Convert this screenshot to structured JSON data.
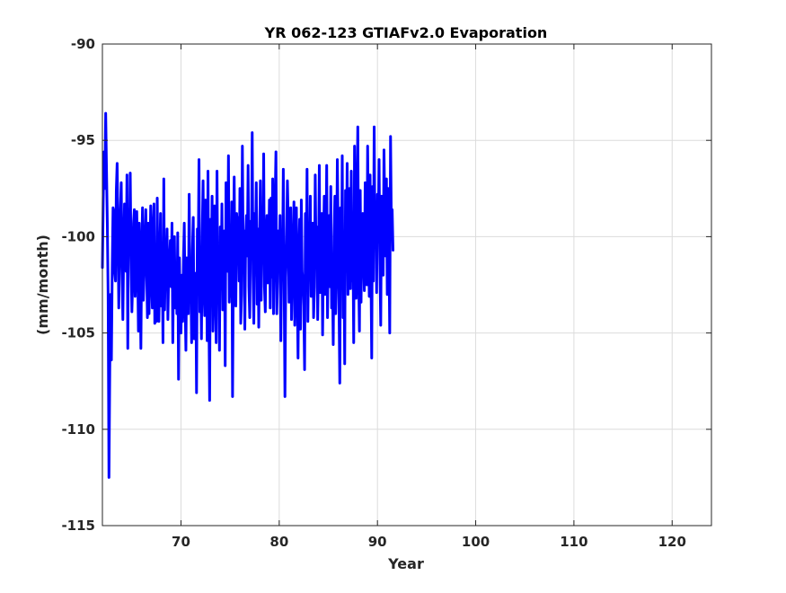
{
  "chart_data": {
    "type": "line",
    "title": "YR 062-123 GTIAFv2.0 Evaporation",
    "xlabel": "Year",
    "ylabel": "(mm/month)",
    "xlim": [
      62,
      124
    ],
    "ylim": [
      -115,
      -90
    ],
    "xticks": [
      70,
      80,
      90,
      100,
      110,
      120
    ],
    "xtick_labels": [
      "70",
      "80",
      "90",
      "100",
      "110",
      "120"
    ],
    "yticks": [
      -115,
      -110,
      -105,
      -100,
      -95,
      -90
    ],
    "ytick_labels": [
      "-115",
      "-110",
      "-105",
      "-100",
      "-95",
      "-90"
    ],
    "grid": true,
    "legend": "none",
    "series": [
      {
        "color": "#0000ff",
        "sampling": "monthly",
        "x_start": 62.0,
        "x_step": 0.08333,
        "values": [
          -101.6,
          -98.1,
          -95.6,
          -97.5,
          -93.6,
          -96.5,
          -99.3,
          -103.0,
          -112.5,
          -106.9,
          -103.0,
          -106.4,
          -101.6,
          -98.5,
          -98.7,
          -101.8,
          -102.3,
          -97.6,
          -96.2,
          -99.5,
          -103.7,
          -100.5,
          -98.6,
          -97.2,
          -101.7,
          -104.3,
          -100.7,
          -98.3,
          -101.5,
          -101.8,
          -96.8,
          -105.8,
          -98.6,
          -100.5,
          -96.7,
          -101.1,
          -103.9,
          -102.3,
          -99.3,
          -98.6,
          -103.1,
          -101.3,
          -98.7,
          -101.3,
          -104.9,
          -99.3,
          -101.8,
          -105.8,
          -100.8,
          -98.5,
          -103.3,
          -101.9,
          -100.2,
          -98.6,
          -101.5,
          -104.2,
          -99.3,
          -104.0,
          -101.1,
          -98.4,
          -102.2,
          -103.7,
          -99.6,
          -98.3,
          -104.5,
          -100.9,
          -104.4,
          -98.0,
          -103.5,
          -104.4,
          -101.4,
          -98.8,
          -103.6,
          -100.5,
          -105.5,
          -97.0,
          -103.8,
          -101.1,
          -101.5,
          -99.6,
          -104.3,
          -102.0,
          -101.2,
          -100.2,
          -102.6,
          -99.3,
          -105.5,
          -101.4,
          -100.0,
          -103.7,
          -101.4,
          -104.0,
          -99.8,
          -107.4,
          -101.1,
          -103.9,
          -105.0,
          -102.0,
          -104.4,
          -101.3,
          -99.3,
          -103.3,
          -105.9,
          -101.1,
          -102.0,
          -104.0,
          -97.8,
          -103.0,
          -102.2,
          -105.5,
          -100.7,
          -99.0,
          -105.3,
          -103.7,
          -101.9,
          -108.1,
          -99.6,
          -101.3,
          -96.0,
          -103.9,
          -101.2,
          -105.3,
          -99.8,
          -97.1,
          -102.6,
          -104.1,
          -98.1,
          -100.1,
          -105.4,
          -96.6,
          -103.6,
          -108.5,
          -99.1,
          -102.6,
          -97.9,
          -104.9,
          -101.6,
          -98.4,
          -102.5,
          -105.5,
          -96.6,
          -103.2,
          -100.9,
          -105.9,
          -99.5,
          -102.7,
          -98.3,
          -103.8,
          -100.5,
          -99.7,
          -106.7,
          -97.2,
          -101.2,
          -101.8,
          -95.8,
          -103.4,
          -101.1,
          -103.1,
          -98.2,
          -108.3,
          -101.4,
          -96.9,
          -102.1,
          -103.6,
          -98.8,
          -100.5,
          -99.0,
          -102.3,
          -97.5,
          -104.5,
          -103.0,
          -95.3,
          -101.0,
          -99.7,
          -104.8,
          -100.1,
          -98.9,
          -101.0,
          -96.3,
          -102.6,
          -104.2,
          -99.2,
          -100.9,
          -94.6,
          -101.9,
          -104.5,
          -98.8,
          -100.4,
          -97.2,
          -103.5,
          -99.6,
          -104.7,
          -100.1,
          -97.1,
          -103.3,
          -99.8,
          -101.3,
          -95.7,
          -102.6,
          -103.9,
          -100.0,
          -98.9,
          -102.4,
          -101.4,
          -98.1,
          -103.7,
          -98.0,
          -102.1,
          -97.0,
          -104.0,
          -100.7,
          -98.2,
          -95.6,
          -104.0,
          -102.3,
          -99.7,
          -101.6,
          -98.9,
          -105.4,
          -100.9,
          -101.7,
          -96.5,
          -102.4,
          -108.3,
          -102.1,
          -100.4,
          -97.1,
          -99.1,
          -103.4,
          -103.0,
          -98.5,
          -104.3,
          -101.9,
          -100.3,
          -98.2,
          -104.6,
          -100.8,
          -98.5,
          -102.7,
          -106.3,
          -101.2,
          -99.1,
          -104.8,
          -98.1,
          -101.8,
          -102.4,
          -103.6,
          -106.9,
          -98.8,
          -102.1,
          -96.5,
          -104.4,
          -100.5,
          -101.7,
          -97.9,
          -103.1,
          -101.4,
          -99.3,
          -104.2,
          -102.6,
          -96.8,
          -101.1,
          -99.5,
          -104.3,
          -101.5,
          -96.3,
          -102.9,
          -101.9,
          -98.8,
          -105.1,
          -100.5,
          -97.9,
          -103.0,
          -101.6,
          -96.3,
          -104.2,
          -100.2,
          -98.9,
          -102.6,
          -97.4,
          -103.7,
          -102.1,
          -105.6,
          -100.0,
          -97.9,
          -104.0,
          -101.5,
          -96.0,
          -99.5,
          -103.3,
          -107.6,
          -98.5,
          -102.3,
          -95.8,
          -104.2,
          -100.5,
          -106.6,
          -97.6,
          -101.8,
          -96.2,
          -103.0,
          -100.3,
          -97.5,
          -102.7,
          -96.6,
          -102.3,
          -100.0,
          -105.5,
          -95.3,
          -99.9,
          -103.2,
          -98.1,
          -94.3,
          -102.0,
          -104.9,
          -97.6,
          -103.4,
          -99.2,
          -98.8,
          -101.1,
          -102.8,
          -97.2,
          -100.5,
          -102.5,
          -95.3,
          -99.7,
          -103.1,
          -96.8,
          -101.4,
          -106.3,
          -97.4,
          -102.3,
          -94.3,
          -100.4,
          -98.2,
          -102.9,
          -97.8,
          -99.6,
          -96.0,
          -101.4,
          -104.6,
          -97.9,
          -99.4,
          -102.0,
          -95.5,
          -98.7,
          -101.0,
          -97.0,
          -103.0,
          -97.5,
          -100.4,
          -105.0,
          -94.8,
          -99.4,
          -98.6,
          -100.7
        ]
      }
    ]
  }
}
